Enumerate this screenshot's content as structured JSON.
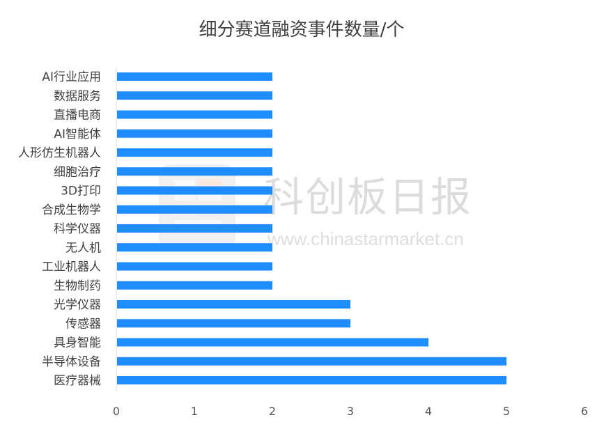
{
  "colors": {
    "bar": "#1f8cff",
    "axis": "#d9d9d9",
    "title": "#404040",
    "label": "#404040",
    "watermark": "#dcdcdc"
  },
  "watermark": {
    "text": "科创板日报",
    "url": "www.chinastarmarket.cn"
  },
  "chart_data": {
    "type": "bar",
    "orientation": "horizontal",
    "title": "细分赛道融资事件数量/个",
    "xlabel": "",
    "ylabel": "",
    "xlim": [
      0,
      6
    ],
    "x_ticks": [
      0,
      1,
      2,
      3,
      4,
      5,
      6
    ],
    "grid": false,
    "legend": "none",
    "categories": [
      "AI行业应用",
      "数据服务",
      "直播电商",
      "AI智能体",
      "人形仿生机器人",
      "细胞治疗",
      "3D打印",
      "合成生物学",
      "科学仪器",
      "无人机",
      "工业机器人",
      "生物制药",
      "光学仪器",
      "传感器",
      "具身智能",
      "半导体设备",
      "医疗器械"
    ],
    "values": [
      2,
      2,
      2,
      2,
      2,
      2,
      2,
      2,
      2,
      2,
      2,
      2,
      3,
      3,
      4,
      5,
      5
    ]
  }
}
